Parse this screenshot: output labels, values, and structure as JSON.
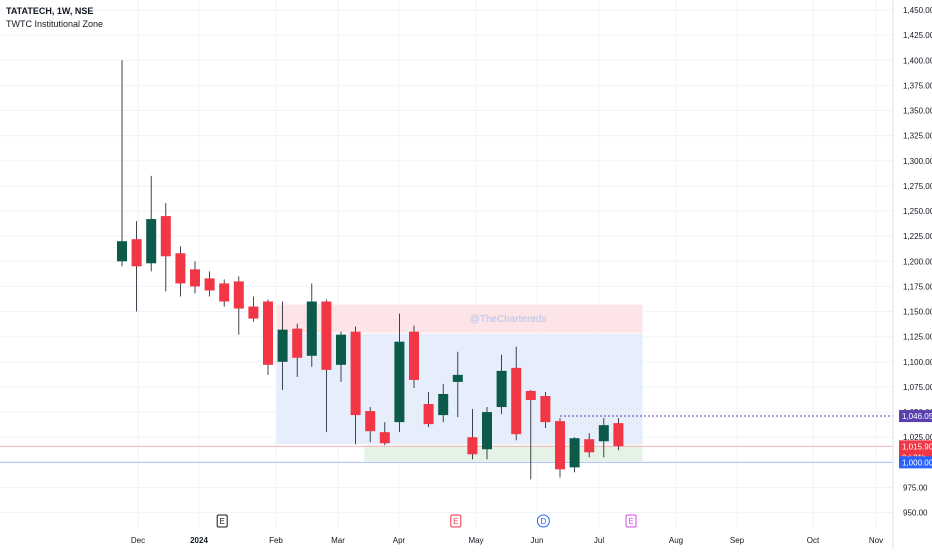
{
  "header": {
    "symbol": "TATATECH, 1W, NSE",
    "indicator": "TWTC Institutional Zone"
  },
  "watermark": "@TheChartereds",
  "colors": {
    "bull": "#0b5a4a",
    "bear": "#f23645",
    "grid": "#f0f3fa",
    "axis_text": "#131722",
    "zone_red": "#fde4e6",
    "zone_blue": "#e6edfb",
    "zone_green": "#e5f3e6",
    "price_label_purple": "#5b3fb0",
    "price_label_red": "#f23645",
    "price_label_blue": "#2962ff"
  },
  "chart_data": {
    "type": "candlestick",
    "title": "TATATECH, 1W, NSE",
    "ylim": [
      945,
      1455
    ],
    "y_ticks": [
      "950.00",
      "975.00",
      "1,000.00",
      "1,025.00",
      "1,050.00",
      "1,075.00",
      "1,100.00",
      "1,125.00",
      "1,150.00",
      "1,175.00",
      "1,200.00",
      "1,225.00",
      "1,250.00",
      "1,275.00",
      "1,300.00",
      "1,325.00",
      "1,350.00",
      "1,375.00",
      "1,400.00",
      "1,425.00",
      "1,450.00"
    ],
    "x_labels": [
      "Dec",
      "2024",
      "Feb",
      "Mar",
      "Apr",
      "May",
      "Jun",
      "Jul",
      "Aug",
      "Sep",
      "Oct",
      "Nov"
    ],
    "candles": [
      {
        "week": "2023-11-27",
        "o": 1200,
        "h": 1400,
        "l": 1195,
        "c": 1220
      },
      {
        "week": "2023-12-04",
        "o": 1222,
        "h": 1240,
        "l": 1150,
        "c": 1195
      },
      {
        "week": "2023-12-11",
        "o": 1198,
        "h": 1285,
        "l": 1190,
        "c": 1242
      },
      {
        "week": "2023-12-18",
        "o": 1245,
        "h": 1258,
        "l": 1170,
        "c": 1205
      },
      {
        "week": "2023-12-25",
        "o": 1208,
        "h": 1215,
        "l": 1165,
        "c": 1178
      },
      {
        "week": "2024-01-01",
        "o": 1192,
        "h": 1200,
        "l": 1168,
        "c": 1175
      },
      {
        "week": "2024-01-08",
        "o": 1183,
        "h": 1190,
        "l": 1165,
        "c": 1171
      },
      {
        "week": "2024-01-15",
        "o": 1178,
        "h": 1182,
        "l": 1155,
        "c": 1160
      },
      {
        "week": "2024-01-22",
        "o": 1180,
        "h": 1185,
        "l": 1127,
        "c": 1153
      },
      {
        "week": "2024-01-29",
        "o": 1155,
        "h": 1165,
        "l": 1140,
        "c": 1143
      },
      {
        "week": "2024-02-05",
        "o": 1160,
        "h": 1162,
        "l": 1087,
        "c": 1097
      },
      {
        "week": "2024-02-12",
        "o": 1100,
        "h": 1160,
        "l": 1072,
        "c": 1132
      },
      {
        "week": "2024-02-19",
        "o": 1133,
        "h": 1138,
        "l": 1085,
        "c": 1104
      },
      {
        "week": "2024-02-26",
        "o": 1106,
        "h": 1178,
        "l": 1095,
        "c": 1160
      },
      {
        "week": "2024-03-04",
        "o": 1160,
        "h": 1162,
        "l": 1030,
        "c": 1092
      },
      {
        "week": "2024-03-11",
        "o": 1097,
        "h": 1130,
        "l": 1080,
        "c": 1127
      },
      {
        "week": "2024-03-18",
        "o": 1130,
        "h": 1135,
        "l": 1018,
        "c": 1047
      },
      {
        "week": "2024-03-25",
        "o": 1051,
        "h": 1055,
        "l": 1020,
        "c": 1031
      },
      {
        "week": "2024-04-01",
        "o": 1030,
        "h": 1040,
        "l": 1017,
        "c": 1019
      },
      {
        "week": "2024-04-08",
        "o": 1040,
        "h": 1148,
        "l": 1030,
        "c": 1120
      },
      {
        "week": "2024-04-15",
        "o": 1130,
        "h": 1136,
        "l": 1074,
        "c": 1082
      },
      {
        "week": "2024-04-22",
        "o": 1058,
        "h": 1070,
        "l": 1035,
        "c": 1038
      },
      {
        "week": "2024-04-29",
        "o": 1047,
        "h": 1078,
        "l": 1040,
        "c": 1068
      },
      {
        "week": "2024-05-06",
        "o": 1080,
        "h": 1110,
        "l": 1045,
        "c": 1087
      },
      {
        "week": "2024-05-13",
        "o": 1025,
        "h": 1053,
        "l": 1003,
        "c": 1008
      },
      {
        "week": "2024-05-20",
        "o": 1013,
        "h": 1055,
        "l": 1003,
        "c": 1050
      },
      {
        "week": "2024-05-27",
        "o": 1055,
        "h": 1107,
        "l": 1048,
        "c": 1091
      },
      {
        "week": "2024-06-03",
        "o": 1094,
        "h": 1115,
        "l": 1022,
        "c": 1028
      },
      {
        "week": "2024-06-10",
        "o": 1071,
        "h": 1072,
        "l": 983,
        "c": 1062
      },
      {
        "week": "2024-06-17",
        "o": 1066,
        "h": 1070,
        "l": 1034,
        "c": 1040
      },
      {
        "week": "2024-06-24",
        "o": 1041,
        "h": 1044,
        "l": 985,
        "c": 993
      },
      {
        "week": "2024-07-01",
        "o": 995,
        "h": 1025,
        "l": 990,
        "c": 1024
      },
      {
        "week": "2024-07-08",
        "o": 1023,
        "h": 1029,
        "l": 1005,
        "c": 1010
      },
      {
        "week": "2024-07-15",
        "o": 1021,
        "h": 1044,
        "l": 1005,
        "c": 1037
      },
      {
        "week": "2024-07-22",
        "o": 1039,
        "h": 1044,
        "l": 1012,
        "c": 1016
      }
    ],
    "zones": [
      {
        "name": "red",
        "from_week": "2024-02-12",
        "to_week": "2024-08-05",
        "y_top": 1157,
        "y_bottom": 1129
      },
      {
        "name": "blue",
        "from_week": "2024-02-12",
        "to_week": "2024-08-05",
        "y_top": 1128,
        "y_bottom": 1018
      },
      {
        "name": "green",
        "from_week": "2024-03-25",
        "to_week": "2024-08-05",
        "y_top": 1017,
        "y_bottom": 1001
      }
    ],
    "horizontal_lines": [
      {
        "price": 1046.05,
        "style": "dotted",
        "color": "#5b3fb0",
        "from_week": "2024-06-24"
      },
      {
        "price": 1015.9,
        "style": "solid",
        "color": "#f7b6bc"
      },
      {
        "price": 1000,
        "style": "solid",
        "color": "#a9bff7"
      }
    ],
    "price_labels": [
      {
        "text": "1,046.05",
        "price": 1046.05,
        "color": "#5b3fb0"
      },
      {
        "text": "1,015.90",
        "sub": "2d 21h",
        "price": 1015.9,
        "color": "#f23645"
      },
      {
        "text": "1,000.00",
        "price": 1000,
        "color": "#2962ff"
      }
    ],
    "events": [
      {
        "week": "2024-01-15",
        "letter": "E",
        "color": "#131722",
        "shape": "square"
      },
      {
        "week": "2024-05-06",
        "letter": "E",
        "color": "#f23645",
        "shape": "square"
      },
      {
        "week": "2024-06-17",
        "letter": "D",
        "color": "#2962ff",
        "shape": "circle"
      },
      {
        "week": "2024-07-29",
        "letter": "E",
        "color": "#d946ef",
        "shape": "square"
      }
    ]
  }
}
